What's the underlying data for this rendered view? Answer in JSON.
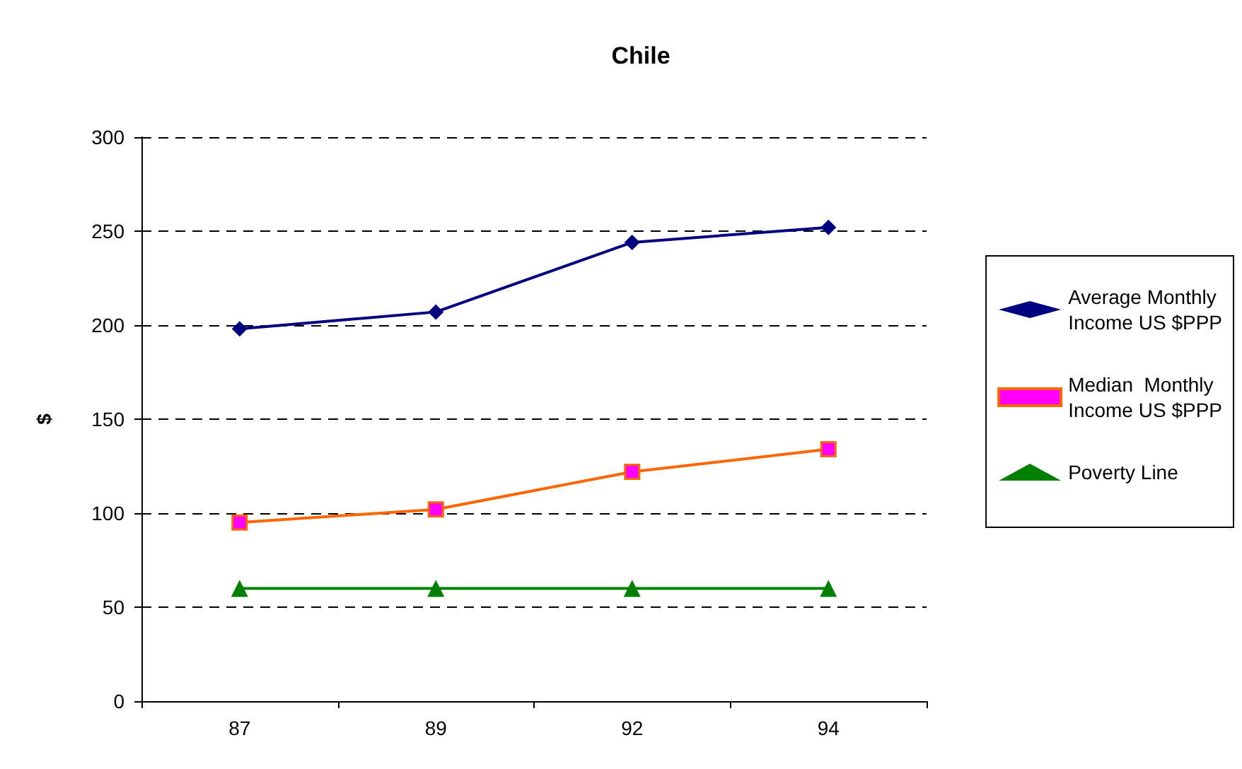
{
  "chart_data": {
    "type": "line",
    "title": "Chile",
    "ylabel": "$",
    "categories": [
      "87",
      "89",
      "92",
      "94"
    ],
    "series": [
      {
        "name": "Average Monthly Income US $PPP",
        "color": "#000080",
        "marker": "diamond",
        "values": [
          198,
          207,
          244,
          252
        ]
      },
      {
        "name": "Median  Monthly Income US $PPP",
        "color": "#ff6600",
        "marker": "square",
        "values": [
          95,
          102,
          122,
          134
        ]
      },
      {
        "name": "Poverty Line",
        "color": "#008000",
        "marker": "triangle",
        "values": [
          60,
          60,
          60,
          60
        ]
      }
    ],
    "ylim": [
      0,
      300
    ],
    "yticks": [
      0,
      50,
      100,
      150,
      200,
      250,
      300
    ],
    "grid": "y",
    "legend": "right",
    "line_style": "solid"
  }
}
